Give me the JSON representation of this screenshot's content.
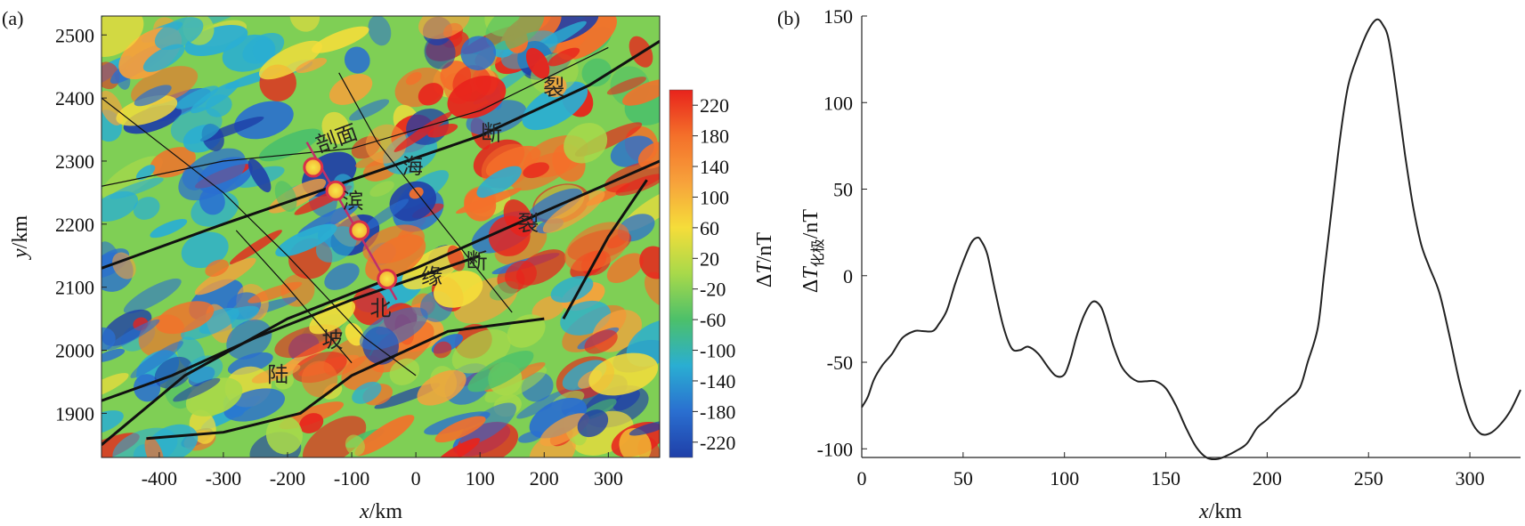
{
  "chart_data": [
    {
      "type": "heatmap",
      "panel_label": "(a)",
      "xlabel": {
        "italic": "x",
        "rest": "/km"
      },
      "ylabel": {
        "italic": "y",
        "rest": "/km"
      },
      "xlim": [
        -490,
        380
      ],
      "ylim": [
        1830,
        2530
      ],
      "x_ticks": [
        -400,
        -300,
        -200,
        -100,
        0,
        100,
        200,
        300
      ],
      "y_ticks": [
        1900,
        2000,
        2100,
        2200,
        2300,
        2400,
        2500
      ],
      "colorbar": {
        "label": {
          "prefix": "Δ",
          "italic": "T",
          "rest": "/nT"
        },
        "range": [
          -240,
          240
        ],
        "ticks": [
          220,
          180,
          140,
          100,
          60,
          20,
          -20,
          -60,
          -100,
          -140,
          -180,
          -220
        ],
        "colors": [
          "#e8231c",
          "#f4702a",
          "#f7a13b",
          "#f5dd3a",
          "#a8d94a",
          "#4cc06a",
          "#2aaed2",
          "#2a6fd0",
          "#1f3fa8"
        ]
      },
      "annotations": [
        {
          "text": "剖面",
          "x": -120,
          "y": 2325,
          "rotate": -20
        },
        {
          "text": "海",
          "x": -5,
          "y": 2280,
          "rotate": 0
        },
        {
          "text": "滨",
          "x": -98,
          "y": 2225,
          "rotate": 0
        },
        {
          "text": "断",
          "x": 118,
          "y": 2333,
          "rotate": 0
        },
        {
          "text": "裂",
          "x": 215,
          "y": 2405,
          "rotate": 0
        },
        {
          "text": "断",
          "x": 95,
          "y": 2130,
          "rotate": 0
        },
        {
          "text": "裂",
          "x": 175,
          "y": 2190,
          "rotate": 0
        },
        {
          "text": "缘",
          "x": 25,
          "y": 2105,
          "rotate": 0
        },
        {
          "text": "北",
          "x": -55,
          "y": 2055,
          "rotate": 0
        },
        {
          "text": "坡",
          "x": -130,
          "y": 2005,
          "rotate": 0
        },
        {
          "text": "陆",
          "x": -215,
          "y": 1950,
          "rotate": 0
        }
      ],
      "profile_line": {
        "x": [
          -170,
          -30
        ],
        "y": [
          2330,
          2080
        ]
      },
      "profile_points": [
        {
          "x": -160,
          "y": 2290
        },
        {
          "x": -125,
          "y": 2253
        },
        {
          "x": -88,
          "y": 2190
        },
        {
          "x": -45,
          "y": 2113
        }
      ]
    },
    {
      "type": "line",
      "panel_label": "(b)",
      "xlabel": {
        "italic": "x",
        "rest": "/km"
      },
      "ylabel": {
        "prefix": "Δ",
        "italic": "T",
        "sub": "化极",
        "rest": "/nT"
      },
      "xlim": [
        0,
        325
      ],
      "ylim": [
        -105,
        150
      ],
      "x_ticks": [
        0,
        50,
        100,
        150,
        200,
        250,
        300
      ],
      "y_ticks": [
        -100,
        -50,
        0,
        50,
        100,
        150
      ],
      "series": [
        {
          "x": [
            0,
            3,
            6,
            10,
            15,
            20,
            26,
            30,
            35,
            38,
            42,
            46,
            50,
            54,
            57,
            59,
            62,
            66,
            70,
            74,
            78,
            82,
            87,
            92,
            96,
            100,
            103,
            106,
            110,
            114,
            118,
            121,
            124,
            128,
            132,
            136,
            140,
            145,
            150,
            155,
            160,
            165,
            170,
            175,
            180,
            185,
            190,
            195,
            200,
            205,
            210,
            216,
            220,
            225,
            228,
            232,
            236,
            240,
            245,
            250,
            254,
            257,
            260,
            264,
            268,
            272,
            276,
            280,
            285,
            290,
            295,
            300,
            305,
            310,
            315,
            320,
            325
          ],
          "y": [
            -76,
            -70,
            -60,
            -52,
            -45,
            -36,
            -32,
            -32,
            -32,
            -28,
            -20,
            -5,
            8,
            19,
            22,
            20,
            12,
            -10,
            -30,
            -42,
            -43,
            -41,
            -45,
            -53,
            -58,
            -57,
            -48,
            -35,
            -22,
            -15,
            -18,
            -28,
            -40,
            -52,
            -58,
            -61,
            -61,
            -61,
            -65,
            -75,
            -88,
            -99,
            -105,
            -106,
            -104,
            -101,
            -97,
            -88,
            -83,
            -77,
            -72,
            -65,
            -50,
            -30,
            0,
            40,
            80,
            110,
            128,
            142,
            148,
            145,
            136,
            105,
            70,
            40,
            18,
            5,
            -10,
            -35,
            -62,
            -82,
            -91,
            -91,
            -86,
            -78,
            -66
          ]
        }
      ]
    }
  ]
}
